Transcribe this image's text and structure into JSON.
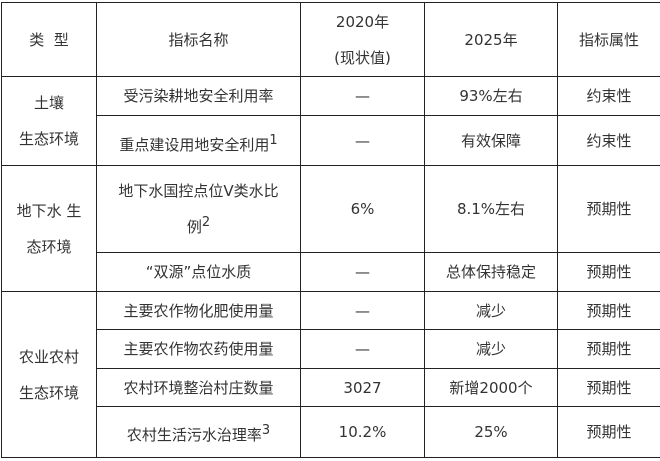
{
  "header": {
    "type": "类  型",
    "name": "指标名称",
    "y2020": "2020年",
    "y2020_note": "(现状值)",
    "y2025": "2025年",
    "attr": "指标属性"
  },
  "groups": [
    {
      "category_line1": "土壤",
      "category_line2": "生态环境",
      "rows": [
        {
          "name": "受污染耕地安全利用率",
          "sup": "",
          "v2020": "—",
          "v2025": "93%左右",
          "attr": "约束性"
        },
        {
          "name": "重点建设用地安全利用",
          "sup": "1",
          "v2020": "—",
          "v2025": "有效保障",
          "attr": "约束性"
        }
      ]
    },
    {
      "category_line1": "地下水 生",
      "category_line2": "态环境",
      "rows": [
        {
          "name": "地下水国控点位V类水比",
          "name2": "例",
          "sup": "2",
          "v2020": "6%",
          "v2025": "8.1%左右",
          "attr": "预期性"
        },
        {
          "name": "“双源”点位水质",
          "sup": "",
          "v2020": "—",
          "v2025": "总体保持稳定",
          "attr": "预期性"
        }
      ]
    },
    {
      "category_line1": "农业农村",
      "category_line2": "生态环境",
      "rows": [
        {
          "name": "主要农作物化肥使用量",
          "sup": "",
          "v2020": "—",
          "v2025": "减少",
          "attr": "预期性"
        },
        {
          "name": "主要农作物农药使用量",
          "sup": "",
          "v2020": "—",
          "v2025": "减少",
          "attr": "预期性"
        },
        {
          "name": "农村环境整治村庄数量",
          "sup": "",
          "v2020": "3027",
          "v2025": "新增2000个",
          "attr": "预期性"
        },
        {
          "name": "农村生活污水治理率",
          "sup": "3",
          "v2020": "10.2%",
          "v2025": "25%",
          "attr": "预期性"
        }
      ]
    }
  ]
}
